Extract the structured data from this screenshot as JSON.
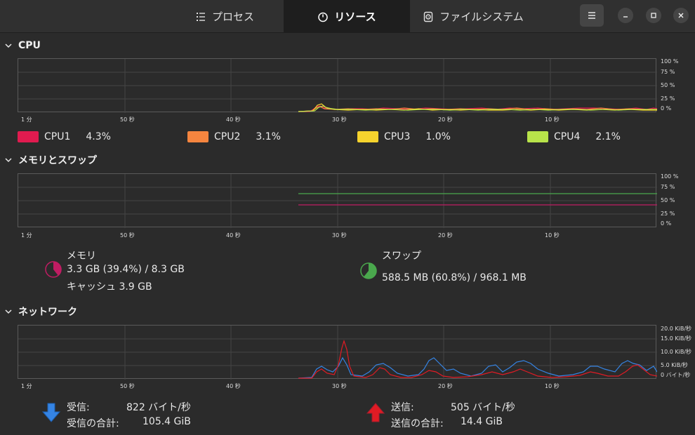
{
  "header": {
    "tabs": [
      {
        "label": "プロセス",
        "icon": "process-list-icon",
        "active": false
      },
      {
        "label": "リソース",
        "icon": "gauge-icon",
        "active": true
      },
      {
        "label": "ファイルシステム",
        "icon": "disk-icon",
        "active": false
      }
    ],
    "menu_icon": "hamburger-menu-icon",
    "window_buttons": [
      "minimize-icon",
      "maximize-icon",
      "close-icon"
    ]
  },
  "colors": {
    "cpu1": "#e01b4f",
    "cpu2": "#f5853f",
    "cpu3": "#f6d32d",
    "cpu4": "#b8e34a",
    "memory": "#c01c63",
    "swap": "#4aa84d",
    "receive": "#3584e4",
    "send": "#e01b24"
  },
  "x_axis_labels": [
    "1 分",
    "50 秒",
    "40 秒",
    "30 秒",
    "20 秒",
    "10 秒"
  ],
  "cpu": {
    "title": "CPU",
    "y_axis_labels": [
      "100 %",
      "75 %",
      "50 %",
      "25 %",
      "0 %"
    ],
    "legend": [
      {
        "label": "CPU1",
        "value": "4.3%"
      },
      {
        "label": "CPU2",
        "value": "3.1%"
      },
      {
        "label": "CPU3",
        "value": "1.0%"
      },
      {
        "label": "CPU4",
        "value": "2.1%"
      }
    ]
  },
  "memory": {
    "title": "メモリとスワップ",
    "y_axis_labels": [
      "100 %",
      "75 %",
      "50 %",
      "25 %",
      "0 %"
    ],
    "mem_label": "メモリ",
    "mem_value": "3.3 GB (39.4%) / 8.3 GB",
    "cache_value": "キャッシュ 3.9 GB",
    "mem_fraction": 0.394,
    "swap_label": "スワップ",
    "swap_value": "588.5 MB (60.8%) / 968.1 MB",
    "swap_fraction": 0.608
  },
  "network": {
    "title": "ネットワーク",
    "y_axis_labels": [
      "20.0 KiB/秒",
      "15.0 KiB/秒",
      "10.0 KiB/秒",
      "5.0 KiB/秒",
      "0 バイト/秒"
    ],
    "receive_label": "受信:",
    "receive_value": "822 バイト/秒",
    "receive_total_label": "受信の合計:",
    "receive_total_value": "105.4 GiB",
    "send_label": "送信:",
    "send_value": "505 バイト/秒",
    "send_total_label": "送信の合計:",
    "send_total_value": "14.4 GiB"
  }
}
